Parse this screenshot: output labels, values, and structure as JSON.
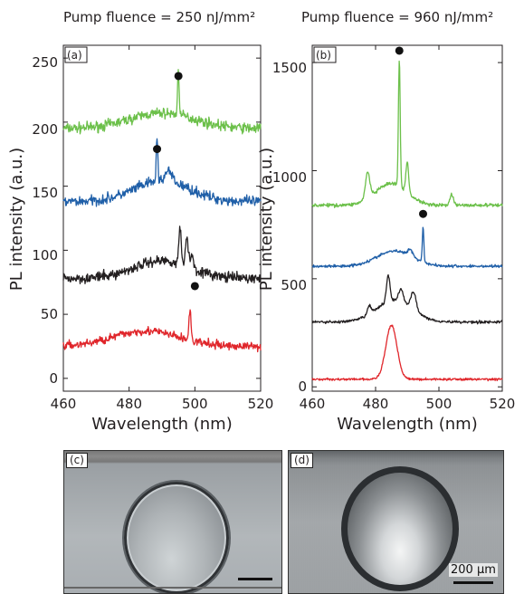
{
  "panel_a": {
    "heading": "Pump fluence = 250 nJ/mm²",
    "tag": "(a)"
  },
  "panel_b": {
    "heading": "Pump fluence = 960 nJ/mm²",
    "tag": "(b)"
  },
  "panel_c": {
    "tag": "(c)"
  },
  "panel_d": {
    "tag": "(d)",
    "scale_label": "200 μm"
  },
  "colors": {
    "green": "#6cc04a",
    "blue": "#1f5fa8",
    "black": "#231f20",
    "red": "#e0262b"
  },
  "chart_data": [
    {
      "type": "line",
      "xlabel": "Wavelength (nm)",
      "ylabel": "PL intensity (a.u.)",
      "xlim": [
        460,
        520
      ],
      "ylim": [
        -10,
        260
      ],
      "xticks": [
        "460",
        "480",
        "500",
        "520"
      ],
      "yticks": [
        "0",
        "50",
        "100",
        "150",
        "200",
        "250"
      ],
      "series": [
        {
          "color": "green",
          "base": 195,
          "bump": [
            490,
            14,
            12
          ],
          "peaks": [
            [
              495,
              35,
              0.35
            ]
          ],
          "noise": 6,
          "marker": [
            495,
            236
          ]
        },
        {
          "color": "blue",
          "base": 138,
          "bump": [
            490,
            12,
            16
          ],
          "peaks": [
            [
              488.5,
              33,
              0.35
            ],
            [
              492,
              8,
              1.5
            ]
          ],
          "noise": 6,
          "marker": [
            488.5,
            179
          ]
        },
        {
          "color": "black",
          "base": 78,
          "bump": [
            490,
            12,
            14
          ],
          "peaks": [
            [
              495.5,
              28,
              0.5
            ],
            [
              497.5,
              22,
              0.6
            ],
            [
              499,
              10,
              0.8
            ]
          ],
          "noise": 6,
          "marker": null
        },
        {
          "color": "red",
          "base": 25,
          "bump": [
            485,
            14,
            12
          ],
          "peaks": [
            [
              498.5,
              23,
              0.45
            ]
          ],
          "noise": 5,
          "marker": [
            500,
            72
          ]
        }
      ]
    },
    {
      "type": "line",
      "xlabel": "Wavelength (nm)",
      "ylabel": "PL intensity (a.u.)",
      "xlim": [
        460,
        520
      ],
      "ylim": [
        -20,
        1580
      ],
      "xticks": [
        "460",
        "480",
        "500",
        "520"
      ],
      "yticks": [
        "0",
        "500",
        "1000",
        "1500"
      ],
      "series": [
        {
          "color": "green",
          "base": 840,
          "bump": [
            485,
            7,
            100
          ],
          "peaks": [
            [
              477.5,
              120,
              1.0
            ],
            [
              487.5,
              580,
              0.4
            ],
            [
              490,
              140,
              0.6
            ],
            [
              504,
              50,
              0.8
            ]
          ],
          "noise": 12,
          "marker": [
            487.5,
            1555
          ]
        },
        {
          "color": "blue",
          "base": 558,
          "bump": [
            486,
            8,
            70
          ],
          "peaks": [
            [
              495,
              160,
              0.35
            ],
            [
              491,
              30,
              1.2
            ]
          ],
          "noise": 10,
          "marker": [
            495,
            800
          ]
        },
        {
          "color": "black",
          "base": 300,
          "bump": [
            486,
            8,
            100
          ],
          "peaks": [
            [
              478,
              40,
              0.8
            ],
            [
              484,
              120,
              0.8
            ],
            [
              488,
              60,
              1.0
            ],
            [
              492,
              80,
              1.2
            ]
          ],
          "noise": 10,
          "marker": null
        },
        {
          "color": "red",
          "base": 35,
          "bump": [
            485,
            2.5,
            250
          ],
          "peaks": [],
          "noise": 8,
          "marker": null
        }
      ]
    }
  ]
}
